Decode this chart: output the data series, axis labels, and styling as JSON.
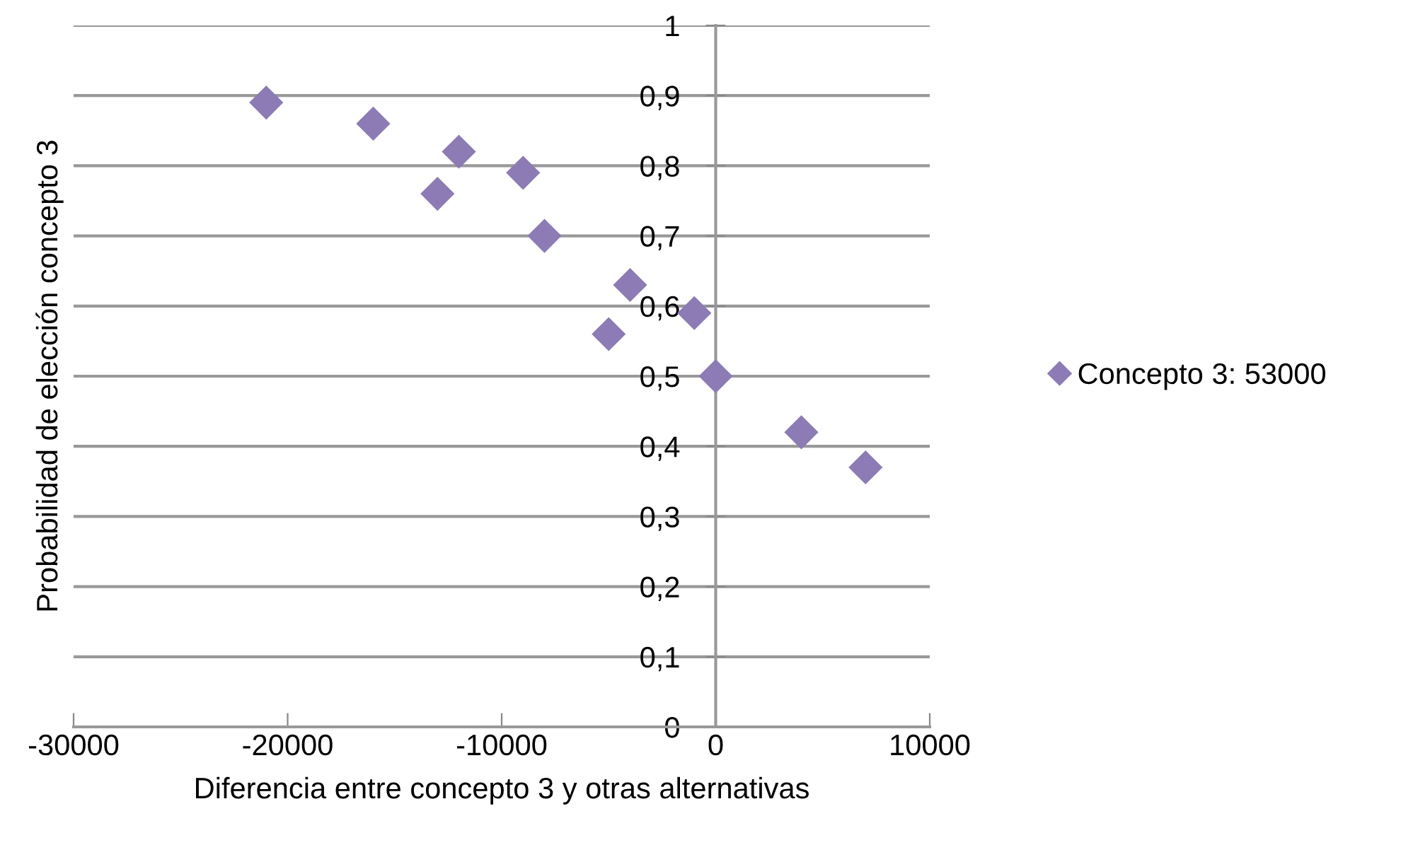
{
  "chart_data": {
    "type": "scatter",
    "xlabel": "Diferencia entre concepto 3 y otras alternativas",
    "ylabel": "Probabilidad de elección concepto 3",
    "series": [
      {
        "name": "Concepto 3: 53000",
        "color": "#8c7bb5",
        "x": [
          -21000,
          -16000,
          -13000,
          -12000,
          -9000,
          -8000,
          -4000,
          -5000,
          -1000,
          0,
          4000,
          7000
        ],
        "values": [
          0.89,
          0.86,
          0.76,
          0.82,
          0.79,
          0.7,
          0.63,
          0.56,
          0.59,
          0.5,
          0.42,
          0.37
        ]
      }
    ],
    "marker": "diamond",
    "xlim": [
      -30000,
      10000
    ],
    "ylim": [
      0,
      1
    ],
    "xticks": [
      -30000,
      -20000,
      -10000,
      0,
      10000
    ],
    "yticks": [
      0,
      {
        "value": 0.1,
        "label": "0,1"
      },
      {
        "value": 0.2,
        "label": "0,2"
      },
      {
        "value": 0.3,
        "label": "0,3"
      },
      {
        "value": 0.4,
        "label": "0,4"
      },
      {
        "value": 0.5,
        "label": "0,5"
      },
      {
        "value": 0.6,
        "label": "0,6"
      },
      {
        "value": 0.7,
        "label": "0,7"
      },
      {
        "value": 0.8,
        "label": "0,8"
      },
      {
        "value": 0.9,
        "label": "0,9"
      },
      1
    ],
    "grid": "y",
    "legend": "right"
  }
}
